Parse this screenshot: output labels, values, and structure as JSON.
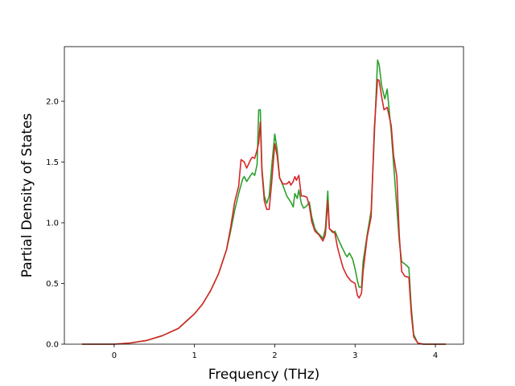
{
  "chart_data": {
    "type": "line",
    "title": "",
    "xlabel": "Frequency (THz)",
    "ylabel": "Partial Density of States",
    "xlim": [
      -0.62,
      4.35
    ],
    "ylim": [
      0.0,
      2.45
    ],
    "xticks": [
      0,
      1,
      2,
      3,
      4
    ],
    "xtick_labels": [
      "0",
      "1",
      "2",
      "3",
      "4"
    ],
    "yticks": [
      0.0,
      0.5,
      1.0,
      1.5,
      2.0
    ],
    "ytick_labels": [
      "0.0",
      "0.5",
      "1.0",
      "1.5",
      "2.0"
    ],
    "grid": false,
    "legend": false,
    "series": [
      {
        "color": "#2ca02c",
        "points": [
          [
            -0.4,
            0
          ],
          [
            0,
            0
          ],
          [
            0.2,
            0.01
          ],
          [
            0.4,
            0.03
          ],
          [
            0.6,
            0.07
          ],
          [
            0.8,
            0.13
          ],
          [
            1.0,
            0.25
          ],
          [
            1.1,
            0.33
          ],
          [
            1.2,
            0.44
          ],
          [
            1.3,
            0.58
          ],
          [
            1.4,
            0.78
          ],
          [
            1.45,
            0.93
          ],
          [
            1.5,
            1.1
          ],
          [
            1.55,
            1.24
          ],
          [
            1.6,
            1.36
          ],
          [
            1.62,
            1.38
          ],
          [
            1.65,
            1.34
          ],
          [
            1.7,
            1.39
          ],
          [
            1.72,
            1.41
          ],
          [
            1.75,
            1.39
          ],
          [
            1.78,
            1.48
          ],
          [
            1.8,
            1.93
          ],
          [
            1.82,
            1.93
          ],
          [
            1.84,
            1.45
          ],
          [
            1.87,
            1.22
          ],
          [
            1.9,
            1.16
          ],
          [
            1.93,
            1.22
          ],
          [
            1.96,
            1.45
          ],
          [
            2.0,
            1.73
          ],
          [
            2.03,
            1.6
          ],
          [
            2.06,
            1.37
          ],
          [
            2.1,
            1.31
          ],
          [
            2.15,
            1.22
          ],
          [
            2.2,
            1.17
          ],
          [
            2.23,
            1.13
          ],
          [
            2.25,
            1.24
          ],
          [
            2.28,
            1.2
          ],
          [
            2.3,
            1.27
          ],
          [
            2.33,
            1.16
          ],
          [
            2.36,
            1.12
          ],
          [
            2.4,
            1.14
          ],
          [
            2.43,
            1.17
          ],
          [
            2.46,
            1.05
          ],
          [
            2.5,
            0.95
          ],
          [
            2.53,
            0.92
          ],
          [
            2.56,
            0.9
          ],
          [
            2.6,
            0.87
          ],
          [
            2.63,
            0.95
          ],
          [
            2.66,
            1.26
          ],
          [
            2.68,
            0.95
          ],
          [
            2.72,
            0.92
          ],
          [
            2.75,
            0.93
          ],
          [
            2.8,
            0.85
          ],
          [
            2.85,
            0.78
          ],
          [
            2.88,
            0.74
          ],
          [
            2.9,
            0.72
          ],
          [
            2.93,
            0.75
          ],
          [
            2.97,
            0.7
          ],
          [
            3.0,
            0.62
          ],
          [
            3.03,
            0.52
          ],
          [
            3.05,
            0.47
          ],
          [
            3.08,
            0.47
          ],
          [
            3.1,
            0.68
          ],
          [
            3.15,
            0.9
          ],
          [
            3.2,
            1.1
          ],
          [
            3.24,
            1.72
          ],
          [
            3.28,
            2.34
          ],
          [
            3.3,
            2.3
          ],
          [
            3.33,
            2.13
          ],
          [
            3.37,
            2.02
          ],
          [
            3.4,
            2.1
          ],
          [
            3.45,
            1.75
          ],
          [
            3.5,
            1.3
          ],
          [
            3.55,
            0.85
          ],
          [
            3.58,
            0.68
          ],
          [
            3.62,
            0.66
          ],
          [
            3.67,
            0.63
          ],
          [
            3.7,
            0.3
          ],
          [
            3.73,
            0.08
          ],
          [
            3.78,
            0.01
          ],
          [
            3.85,
            0
          ],
          [
            4.13,
            0
          ]
        ]
      },
      {
        "color": "#d62728",
        "points": [
          [
            -0.4,
            0
          ],
          [
            0,
            0
          ],
          [
            0.2,
            0.01
          ],
          [
            0.4,
            0.03
          ],
          [
            0.6,
            0.07
          ],
          [
            0.8,
            0.13
          ],
          [
            1.0,
            0.25
          ],
          [
            1.1,
            0.33
          ],
          [
            1.2,
            0.44
          ],
          [
            1.3,
            0.58
          ],
          [
            1.4,
            0.78
          ],
          [
            1.45,
            0.96
          ],
          [
            1.5,
            1.17
          ],
          [
            1.55,
            1.3
          ],
          [
            1.58,
            1.52
          ],
          [
            1.62,
            1.5
          ],
          [
            1.65,
            1.45
          ],
          [
            1.7,
            1.52
          ],
          [
            1.72,
            1.54
          ],
          [
            1.75,
            1.53
          ],
          [
            1.78,
            1.6
          ],
          [
            1.8,
            1.66
          ],
          [
            1.82,
            1.83
          ],
          [
            1.84,
            1.42
          ],
          [
            1.87,
            1.18
          ],
          [
            1.9,
            1.11
          ],
          [
            1.93,
            1.11
          ],
          [
            1.96,
            1.32
          ],
          [
            2.0,
            1.65
          ],
          [
            2.03,
            1.55
          ],
          [
            2.06,
            1.37
          ],
          [
            2.1,
            1.32
          ],
          [
            2.15,
            1.32
          ],
          [
            2.18,
            1.34
          ],
          [
            2.2,
            1.31
          ],
          [
            2.23,
            1.34
          ],
          [
            2.25,
            1.38
          ],
          [
            2.27,
            1.35
          ],
          [
            2.3,
            1.39
          ],
          [
            2.33,
            1.22
          ],
          [
            2.36,
            1.22
          ],
          [
            2.4,
            1.21
          ],
          [
            2.43,
            1.14
          ],
          [
            2.46,
            1.01
          ],
          [
            2.5,
            0.93
          ],
          [
            2.55,
            0.9
          ],
          [
            2.6,
            0.85
          ],
          [
            2.63,
            0.9
          ],
          [
            2.66,
            1.18
          ],
          [
            2.68,
            0.95
          ],
          [
            2.72,
            0.93
          ],
          [
            2.75,
            0.91
          ],
          [
            2.78,
            0.8
          ],
          [
            2.82,
            0.7
          ],
          [
            2.85,
            0.63
          ],
          [
            2.9,
            0.56
          ],
          [
            2.95,
            0.52
          ],
          [
            3.0,
            0.5
          ],
          [
            3.03,
            0.4
          ],
          [
            3.05,
            0.38
          ],
          [
            3.08,
            0.42
          ],
          [
            3.1,
            0.6
          ],
          [
            3.15,
            0.88
          ],
          [
            3.2,
            1.05
          ],
          [
            3.24,
            1.78
          ],
          [
            3.28,
            2.18
          ],
          [
            3.3,
            2.17
          ],
          [
            3.33,
            2.04
          ],
          [
            3.36,
            1.93
          ],
          [
            3.4,
            1.95
          ],
          [
            3.45,
            1.8
          ],
          [
            3.48,
            1.55
          ],
          [
            3.52,
            1.38
          ],
          [
            3.55,
            0.9
          ],
          [
            3.58,
            0.6
          ],
          [
            3.62,
            0.56
          ],
          [
            3.67,
            0.55
          ],
          [
            3.7,
            0.25
          ],
          [
            3.73,
            0.06
          ],
          [
            3.78,
            0.01
          ],
          [
            3.85,
            0
          ],
          [
            4.13,
            0
          ]
        ]
      }
    ]
  }
}
